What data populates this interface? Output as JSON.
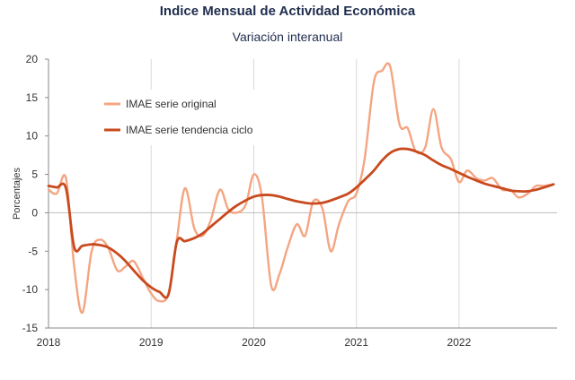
{
  "chart_data": {
    "type": "line",
    "title": "Indice Mensual de  Actividad Económica",
    "subtitle": "Variación interanual",
    "xlabel": "",
    "ylabel": "Porcentajes",
    "ylim": [
      -15,
      20
    ],
    "yticks": [
      -15,
      -10,
      -5,
      0,
      5,
      10,
      15,
      20
    ],
    "xlim": [
      2018,
      2022.92
    ],
    "xticks": [
      2018,
      2019,
      2020,
      2021,
      2022
    ],
    "grid": "vertical",
    "legend_position": "top-left",
    "series": [
      {
        "name": "IMAE serie original",
        "color": "#f4a582",
        "points": [
          [
            2018.0,
            3.0
          ],
          [
            2018.08,
            2.5
          ],
          [
            2018.17,
            4.5
          ],
          [
            2018.25,
            -7.0
          ],
          [
            2018.33,
            -13.0
          ],
          [
            2018.42,
            -5.0
          ],
          [
            2018.5,
            -3.5
          ],
          [
            2018.58,
            -4.5
          ],
          [
            2018.67,
            -7.5
          ],
          [
            2018.75,
            -7.0
          ],
          [
            2018.83,
            -6.3
          ],
          [
            2018.92,
            -8.5
          ],
          [
            2019.0,
            -10.5
          ],
          [
            2019.08,
            -11.5
          ],
          [
            2019.17,
            -10.5
          ],
          [
            2019.25,
            -3.5
          ],
          [
            2019.33,
            3.2
          ],
          [
            2019.42,
            -2.0
          ],
          [
            2019.5,
            -3.0
          ],
          [
            2019.58,
            -1.0
          ],
          [
            2019.67,
            3.0
          ],
          [
            2019.75,
            0.5
          ],
          [
            2019.83,
            0.0
          ],
          [
            2019.92,
            1.0
          ],
          [
            2020.0,
            5.0
          ],
          [
            2020.08,
            2.0
          ],
          [
            2020.17,
            -9.5
          ],
          [
            2020.25,
            -8.0
          ],
          [
            2020.33,
            -4.5
          ],
          [
            2020.42,
            -1.5
          ],
          [
            2020.5,
            -3.0
          ],
          [
            2020.58,
            1.5
          ],
          [
            2020.67,
            0.5
          ],
          [
            2020.75,
            -5.0
          ],
          [
            2020.83,
            -1.5
          ],
          [
            2020.92,
            1.5
          ],
          [
            2021.0,
            2.5
          ],
          [
            2021.08,
            7.0
          ],
          [
            2021.17,
            17.0
          ],
          [
            2021.25,
            18.5
          ],
          [
            2021.33,
            19.0
          ],
          [
            2021.42,
            11.5
          ],
          [
            2021.5,
            11.0
          ],
          [
            2021.58,
            8.0
          ],
          [
            2021.67,
            8.5
          ],
          [
            2021.75,
            13.5
          ],
          [
            2021.83,
            8.5
          ],
          [
            2021.92,
            7.0
          ],
          [
            2022.0,
            4.0
          ],
          [
            2022.08,
            5.5
          ],
          [
            2022.17,
            4.5
          ],
          [
            2022.25,
            4.2
          ],
          [
            2022.33,
            4.5
          ],
          [
            2022.42,
            3.0
          ],
          [
            2022.5,
            3.0
          ],
          [
            2022.58,
            2.0
          ],
          [
            2022.67,
            2.5
          ],
          [
            2022.75,
            3.5
          ],
          [
            2022.83,
            3.5
          ],
          [
            2022.92,
            3.7
          ]
        ]
      },
      {
        "name": "IMAE serie  tendencia ciclo",
        "color": "#c84a1e",
        "points": [
          [
            2018.0,
            3.5
          ],
          [
            2018.08,
            3.3
          ],
          [
            2018.17,
            3.2
          ],
          [
            2018.25,
            -4.5
          ],
          [
            2018.33,
            -4.3
          ],
          [
            2018.42,
            -4.1
          ],
          [
            2018.5,
            -4.2
          ],
          [
            2018.58,
            -4.5
          ],
          [
            2018.67,
            -5.3
          ],
          [
            2018.75,
            -6.3
          ],
          [
            2018.83,
            -7.5
          ],
          [
            2018.92,
            -8.8
          ],
          [
            2019.0,
            -9.7
          ],
          [
            2019.08,
            -10.3
          ],
          [
            2019.17,
            -10.6
          ],
          [
            2019.25,
            -3.8
          ],
          [
            2019.33,
            -3.7
          ],
          [
            2019.42,
            -3.3
          ],
          [
            2019.5,
            -2.7
          ],
          [
            2019.58,
            -1.8
          ],
          [
            2019.67,
            -0.8
          ],
          [
            2019.75,
            0.1
          ],
          [
            2019.83,
            0.9
          ],
          [
            2019.92,
            1.6
          ],
          [
            2020.0,
            2.1
          ],
          [
            2020.08,
            2.3
          ],
          [
            2020.17,
            2.3
          ],
          [
            2020.25,
            2.1
          ],
          [
            2020.33,
            1.8
          ],
          [
            2020.42,
            1.5
          ],
          [
            2020.5,
            1.3
          ],
          [
            2020.58,
            1.2
          ],
          [
            2020.67,
            1.3
          ],
          [
            2020.75,
            1.6
          ],
          [
            2020.83,
            2.0
          ],
          [
            2020.92,
            2.5
          ],
          [
            2021.0,
            3.3
          ],
          [
            2021.08,
            4.3
          ],
          [
            2021.17,
            5.5
          ],
          [
            2021.25,
            6.8
          ],
          [
            2021.33,
            7.8
          ],
          [
            2021.42,
            8.3
          ],
          [
            2021.5,
            8.3
          ],
          [
            2021.58,
            8.0
          ],
          [
            2021.67,
            7.5
          ],
          [
            2021.75,
            6.8
          ],
          [
            2021.83,
            6.2
          ],
          [
            2021.92,
            5.7
          ],
          [
            2022.0,
            5.2
          ],
          [
            2022.08,
            4.7
          ],
          [
            2022.17,
            4.2
          ],
          [
            2022.25,
            3.8
          ],
          [
            2022.33,
            3.5
          ],
          [
            2022.42,
            3.2
          ],
          [
            2022.5,
            2.9
          ],
          [
            2022.58,
            2.8
          ],
          [
            2022.67,
            2.8
          ],
          [
            2022.75,
            3.0
          ],
          [
            2022.83,
            3.3
          ],
          [
            2022.92,
            3.7
          ]
        ]
      }
    ]
  }
}
